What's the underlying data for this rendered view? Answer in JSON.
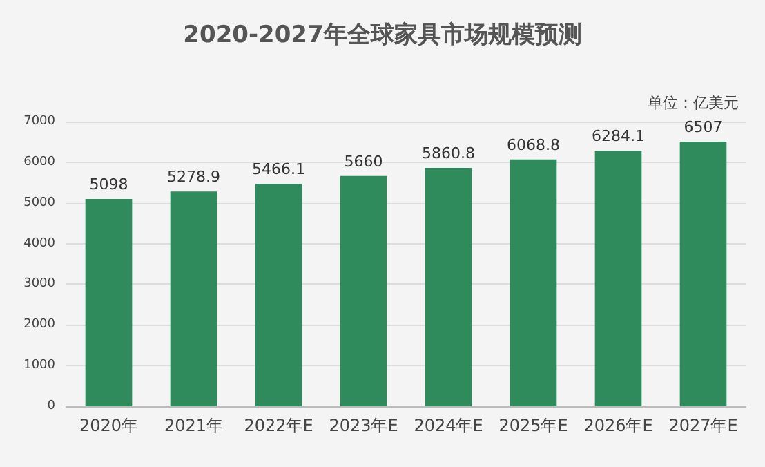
{
  "chart_data": {
    "type": "bar",
    "title": "2020-2027年全球家具市场规模预测",
    "annotations": [
      "单位：亿美元"
    ],
    "categories": [
      "2020年",
      "2021年",
      "2022年E",
      "2023年E",
      "2024年E",
      "2025年E",
      "2026年E",
      "2027年E"
    ],
    "values": [
      5098,
      5278.9,
      5466.1,
      5660,
      5860.8,
      6068.8,
      6284.1,
      6507
    ],
    "color": "#2f8a5c",
    "data_labels": true,
    "grid": "y",
    "ylim": [
      0,
      7000
    ],
    "yticks": [
      0,
      1000,
      2000,
      3000,
      4000,
      5000,
      6000,
      7000
    ]
  }
}
